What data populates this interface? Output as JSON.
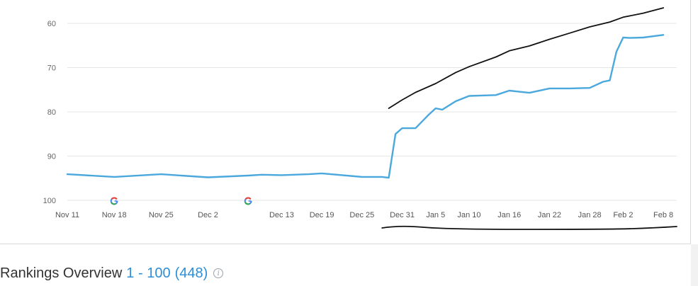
{
  "chart_data": {
    "type": "line",
    "ylim": [
      56,
      100
    ],
    "y_inverted": true,
    "y_ticks": [
      60,
      70,
      80,
      90,
      100
    ],
    "x_tick_labels": [
      "Nov 11",
      "Nov 18",
      "Nov 25",
      "Dec 2",
      "Dec 13",
      "Dec 19",
      "Dec 25",
      "Dec 31",
      "Jan 5",
      "Jan 10",
      "Jan 16",
      "Jan 22",
      "Jan 28",
      "Feb 2",
      "Feb 8"
    ],
    "grid": true,
    "legend": "none",
    "series": [
      {
        "color": "#4ba8dd",
        "x": [
          "Nov 11",
          "Nov 18",
          "Nov 25",
          "Dec 2",
          "Dec 8",
          "Dec 10",
          "Dec 13",
          "Dec 17",
          "Dec 19",
          "Dec 25",
          "Dec 28",
          "Dec 29",
          "Dec 30",
          "Dec 31",
          "Jan 2",
          "Jan 4",
          "Jan 5",
          "Jan 6",
          "Jan 8",
          "Jan 10",
          "Jan 14",
          "Jan 16",
          "Jan 19",
          "Jan 22",
          "Jan 25",
          "Jan 28",
          "Jan 30",
          "Jan 31",
          "Feb 1",
          "Feb 2",
          "Feb 3",
          "Feb 5",
          "Feb 8"
        ],
        "y": [
          94.1,
          94.7,
          94.1,
          94.8,
          94.4,
          94.2,
          94.3,
          94.1,
          93.9,
          94.7,
          94.7,
          94.9,
          85.0,
          83.7,
          83.7,
          80.6,
          79.2,
          79.5,
          77.6,
          76.4,
          76.2,
          75.2,
          75.7,
          74.7,
          74.7,
          74.6,
          73.2,
          72.9,
          66.4,
          63.2,
          63.3,
          63.2,
          62.6
        ]
      },
      {
        "color": "#111111",
        "x": [
          "Dec 29",
          "Dec 31",
          "Jan 2",
          "Jan 5",
          "Jan 8",
          "Jan 10",
          "Jan 14",
          "Jan 16",
          "Jan 19",
          "Jan 22",
          "Jan 25",
          "Jan 28",
          "Jan 31",
          "Feb 2",
          "Feb 5",
          "Feb 8"
        ],
        "y": [
          79.2,
          77.3,
          75.6,
          73.6,
          71.1,
          69.8,
          67.6,
          66.2,
          65.1,
          63.6,
          62.2,
          60.8,
          59.7,
          58.6,
          57.7,
          56.5
        ]
      }
    ],
    "event_markers": [
      {
        "x": "Nov 18",
        "icon": "google-g-icon"
      },
      {
        "x": "Dec 8",
        "icon": "google-g-icon"
      }
    ],
    "annotation_scribbles": [
      {
        "name": "underline",
        "color": "#111111",
        "x_range": [
          "Dec 28",
          "Feb 10"
        ]
      }
    ]
  },
  "overview": {
    "title": "Rankings Overview",
    "range": "1 - 100",
    "count": "(448)",
    "info_icon_glyph": "i"
  }
}
